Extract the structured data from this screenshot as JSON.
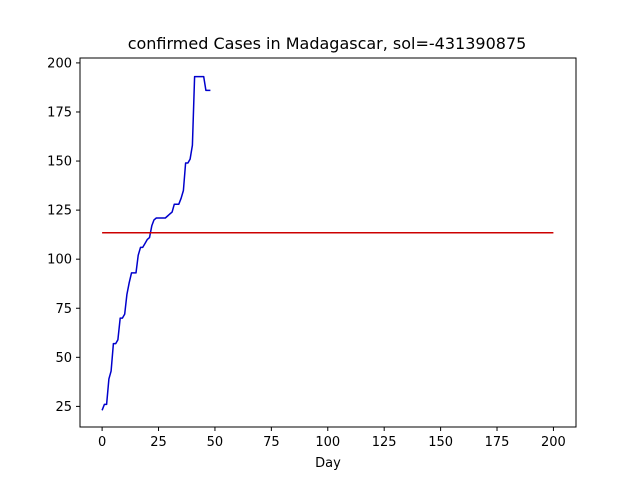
{
  "chart_data": {
    "type": "line",
    "title": "confirmed Cases in Madagascar, sol=-431390875",
    "xlabel": "Day",
    "ylabel": "",
    "xlim": [
      -9.8,
      210.0
    ],
    "ylim": [
      14.5,
      202.5
    ],
    "xticks": [
      0,
      25,
      50,
      75,
      100,
      125,
      150,
      175,
      200
    ],
    "yticks": [
      25,
      50,
      75,
      100,
      125,
      150,
      175,
      200
    ],
    "grid": false,
    "series": [
      {
        "color": "#0000cc",
        "x": [
          0,
          1,
          2,
          3,
          4,
          5,
          6,
          7,
          8,
          9,
          10,
          11,
          12,
          13,
          14,
          15,
          16,
          17,
          18,
          19,
          20,
          21,
          22,
          23,
          24,
          25,
          26,
          27,
          28,
          29,
          30,
          31,
          32,
          33,
          34,
          35,
          36,
          37,
          38,
          39,
          40,
          41,
          42,
          43,
          44,
          45,
          46,
          47,
          48
        ],
        "y": [
          23,
          26,
          26,
          39,
          43,
          57,
          57,
          59,
          70,
          70,
          72,
          82,
          88,
          93,
          93,
          93,
          102,
          106,
          106,
          108,
          110,
          111,
          117,
          120,
          121,
          121,
          121,
          121,
          121,
          122,
          123,
          124,
          128,
          128,
          128,
          131,
          135,
          149,
          149,
          151,
          158,
          193,
          193,
          193,
          193,
          193,
          186,
          186,
          186
        ]
      },
      {
        "color": "#cc0000",
        "x": [
          0,
          200
        ],
        "y": [
          113.5,
          113.5
        ]
      }
    ]
  }
}
